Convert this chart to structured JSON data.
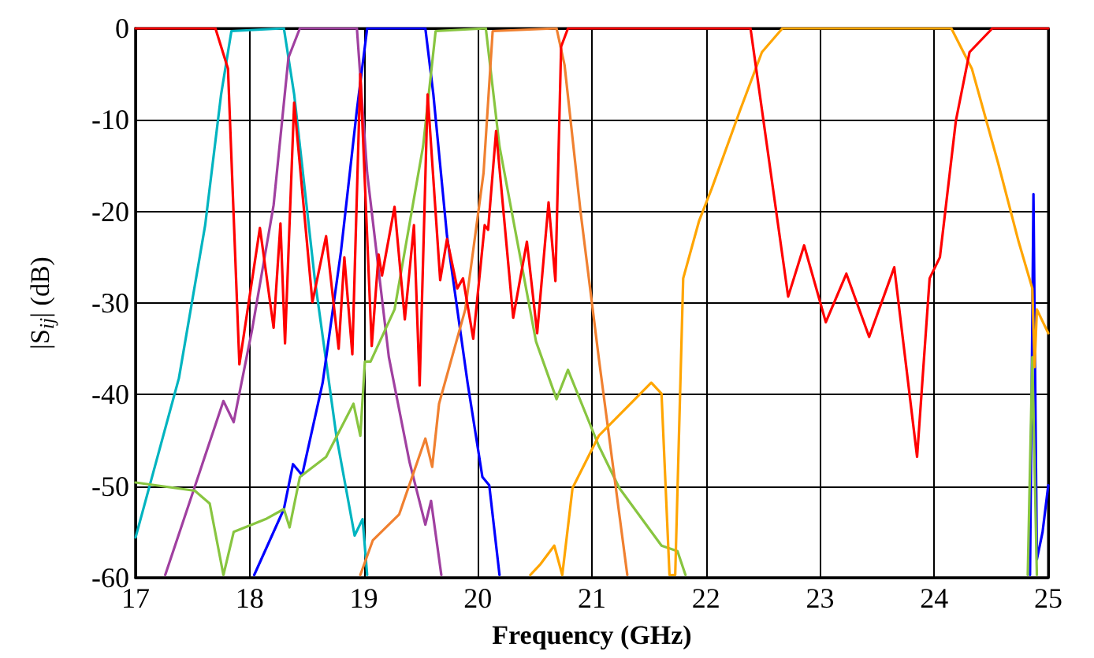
{
  "chart_data": {
    "type": "line",
    "xlabel": "Frequency (GHz)",
    "ylabel": "|S$_{ij}$| (dB)",
    "xlim": [
      17,
      25
    ],
    "ylim": [
      -60,
      0
    ],
    "xticks": [
      17,
      18,
      19,
      20,
      21,
      22,
      23,
      24,
      25
    ],
    "yticks": [
      -60,
      -50,
      -40,
      -30,
      -20,
      -10,
      0
    ],
    "grid": true,
    "marker": "none",
    "line_style": "solid",
    "series": [
      {
        "color": "#00b4c0",
        "x": [
          17,
          17.38,
          17.61,
          17.75,
          17.84,
          18.3,
          18.39,
          18.57,
          18.76,
          18.92,
          18.99,
          19.03
        ],
        "values": [
          -55.6,
          -38.2,
          -21.5,
          -7.2,
          -0.3,
          0,
          -7.2,
          -27.3,
          -44.5,
          -55.4,
          -53.6,
          -59.7
        ]
      },
      {
        "color": "#a040a0",
        "x": [
          17.26,
          17.77,
          17.86,
          18.02,
          18.21,
          18.34,
          18.44,
          18.94,
          19.03,
          19.22,
          19.4,
          19.54,
          19.59,
          19.68
        ],
        "values": [
          -59.7,
          -40.7,
          -43,
          -33,
          -19.3,
          -3.2,
          0,
          0,
          -15.8,
          -35.9,
          -47.3,
          -54.2,
          -51.6,
          -59.7
        ]
      },
      {
        "color": "#0000ff",
        "x": [
          18.04,
          18.3,
          18.38,
          18.46,
          18.64,
          18.8,
          18.94,
          19.03,
          19.54,
          19.61,
          19.73,
          19.91,
          20.04,
          20.1,
          20.19
        ],
        "values": [
          -59.7,
          -52.5,
          -47.6,
          -48.8,
          -38.7,
          -24.4,
          -8.9,
          0,
          0,
          -7.2,
          -22.7,
          -38.7,
          -49,
          -49.9,
          -59.7
        ]
      },
      {
        "color": "#0000ff",
        "x": [
          24.84,
          24.87,
          24.9,
          24.95,
          25
        ],
        "values": [
          -59.7,
          -18.1,
          -58,
          -55,
          -49.9
        ]
      },
      {
        "color": "#88c540",
        "x": [
          17,
          17.52,
          17.65,
          17.77,
          17.86,
          18.02,
          18.14,
          18.3,
          18.35,
          18.44,
          18.67,
          18.91,
          18.97,
          19.01,
          19.06,
          19.27,
          19.52,
          19.63,
          20.07,
          20.19,
          20.51,
          20.69,
          20.79,
          21.06,
          21.24,
          21.61,
          21.75,
          21.82
        ],
        "values": [
          -49.6,
          -50.5,
          -51.9,
          -59.7,
          -55,
          -54.2,
          -53.6,
          -52.5,
          -54.5,
          -49,
          -46.8,
          -41,
          -44.5,
          -36.4,
          -36.4,
          -30.7,
          -12.9,
          -0.3,
          0,
          -12.9,
          -34.2,
          -40.5,
          -37.3,
          -45.6,
          -50.2,
          -56.5,
          -57.1,
          -59.7
        ]
      },
      {
        "color": "#88c540",
        "x": [
          24.82,
          24.86,
          24.9
        ],
        "values": [
          -59.7,
          -35.9,
          -59.7
        ]
      },
      {
        "color": "#f08030",
        "x": [
          18.97,
          19.08,
          19.31,
          19.54,
          19.6,
          19.66,
          19.89,
          20.05,
          20.13,
          20.69,
          20.76,
          20.9,
          21.06,
          21.31
        ],
        "values": [
          -59.7,
          -55.9,
          -53.1,
          -44.8,
          -47.9,
          -41,
          -30.7,
          -15.8,
          -0.3,
          0,
          -4,
          -20,
          -36,
          -59.7
        ]
      },
      {
        "color": "#ffa500",
        "x": [
          20.46,
          20.55,
          20.67,
          20.74,
          20.83,
          21.06,
          21.52,
          21.61,
          21.68,
          21.73,
          21.8,
          21.94,
          22.05,
          22.3,
          22.49,
          22.67,
          24.15,
          24.33,
          24.56,
          24.74,
          24.86,
          24.88,
          24.9,
          25
        ],
        "values": [
          -59.7,
          -58.5,
          -56.5,
          -59.7,
          -50.2,
          -44.5,
          -38.7,
          -39.9,
          -59.7,
          -59.7,
          -27.3,
          -21,
          -17.5,
          -8.9,
          -2.6,
          0,
          0,
          -4.4,
          -14.7,
          -23.3,
          -28.4,
          -37,
          -30.7,
          -33.3
        ]
      },
      {
        "color": "#ff0000",
        "x": [
          17,
          17.7,
          17.81,
          17.91,
          18.09,
          18.21,
          18.27,
          18.31,
          18.39,
          18.55,
          18.67,
          18.78,
          18.83,
          18.9,
          18.97,
          19.07,
          19.13,
          19.16,
          19.27,
          19.36,
          19.44,
          19.49,
          19.56,
          19.67,
          19.73,
          19.82,
          19.87,
          19.96,
          20.06,
          20.09,
          20.16,
          20.31,
          20.43,
          20.52,
          20.62,
          20.68,
          20.73,
          20.79,
          22.39,
          22.72,
          22.86,
          23.05,
          23.23,
          23.43,
          23.65,
          23.85,
          23.96,
          24.05,
          24.19,
          24.31,
          24.51,
          25
        ],
        "values": [
          0,
          0,
          -4.4,
          -36.7,
          -21.8,
          -32.7,
          -21.3,
          -34.4,
          -8.1,
          -29.9,
          -22.7,
          -35,
          -25,
          -35.6,
          -5,
          -34.7,
          -24.7,
          -27,
          -19.5,
          -31.8,
          -21.5,
          -39,
          -7.2,
          -27.5,
          -23,
          -28.4,
          -27.3,
          -33.9,
          -21.5,
          -22,
          -11.2,
          -31.6,
          -23.3,
          -33.3,
          -19,
          -27.6,
          -2,
          0,
          0,
          -29.3,
          -23.7,
          -32.1,
          -26.8,
          -33.7,
          -26.1,
          -46.8,
          -27.3,
          -25,
          -10.1,
          -2.6,
          0,
          0
        ]
      }
    ]
  }
}
